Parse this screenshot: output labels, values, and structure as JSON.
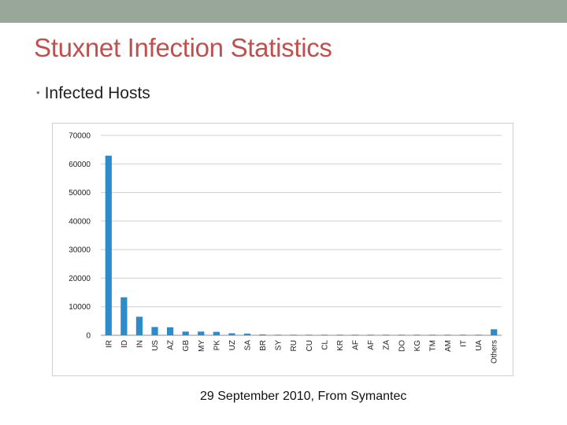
{
  "slide": {
    "title": "Stuxnet Infection Statistics",
    "bullet": "Infected Hosts",
    "caption": "29 September 2010, From Symantec",
    "accent_color": "#c0504d",
    "topbar_color": "#98a79a"
  },
  "chart_data": {
    "type": "bar",
    "title": "",
    "xlabel": "",
    "ylabel": "",
    "ylim": [
      0,
      70000
    ],
    "yticks": [
      0,
      10000,
      20000,
      30000,
      40000,
      50000,
      60000,
      70000
    ],
    "grid": true,
    "bar_color": "#2e8bc9",
    "categories": [
      "IR",
      "ID",
      "IN",
      "US",
      "AZ",
      "GB",
      "MY",
      "PK",
      "UZ",
      "SA",
      "BR",
      "SY",
      "RU",
      "CU",
      "CL",
      "KR",
      "AF",
      "AF",
      "ZA",
      "DO",
      "KG",
      "TM",
      "AM",
      "IT",
      "UA",
      "Others"
    ],
    "values": [
      62900,
      13300,
      6500,
      2900,
      2800,
      1300,
      1300,
      1200,
      700,
      600,
      300,
      200,
      200,
      200,
      200,
      200,
      200,
      200,
      200,
      200,
      200,
      200,
      200,
      200,
      200,
      2100
    ]
  }
}
